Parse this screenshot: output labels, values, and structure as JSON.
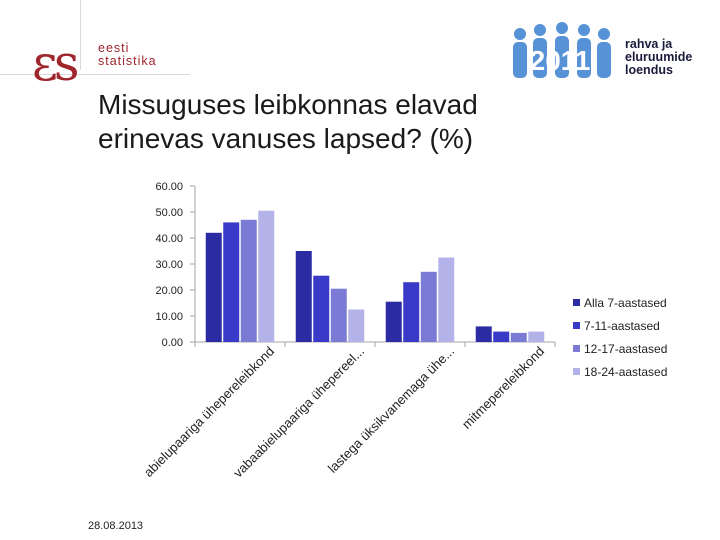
{
  "branding": {
    "left_logo_mark": "εs",
    "left_logo_line1": "eesti",
    "left_logo_line2": "statistika",
    "right_logo_figure": "2011",
    "right_logo_line1": "rahva ja",
    "right_logo_line2": "eluruumide",
    "right_logo_line3": "loendus"
  },
  "title_line1": "Missuguses leibkonnas elavad",
  "title_line2": "erinevas vanuses lapsed? (%)",
  "footer_date": "28.08.2013",
  "colors": {
    "series": [
      "#2b2ba3",
      "#3a3ac8",
      "#7b7bd6",
      "#b3b3ea"
    ],
    "axis": "#a6a6a6",
    "logo_left": "#a0262e",
    "logo_right": "#3a7fd0"
  },
  "chart_data": {
    "type": "bar",
    "title": "",
    "xlabel": "",
    "ylabel": "",
    "ylim": [
      0,
      60
    ],
    "yticks": [
      "0.00",
      "10.00",
      "20.00",
      "30.00",
      "40.00",
      "50.00",
      "60.00"
    ],
    "categories": [
      "abielupaariga ühepereleibkond",
      "vabaabielupaariga ühepereel...",
      "lastega üksikvanemaga ühe...",
      "mitmepereleibkond"
    ],
    "series": [
      {
        "name": "Alla 7-aastased",
        "values": [
          42,
          35,
          15.5,
          6
        ]
      },
      {
        "name": "7-11-aastased",
        "values": [
          46,
          25.5,
          23,
          4
        ]
      },
      {
        "name": "12-17-aastased",
        "values": [
          47,
          20.5,
          27,
          3.5
        ]
      },
      {
        "name": "18-24-aastased",
        "values": [
          50.5,
          12.5,
          32.5,
          4
        ]
      }
    ],
    "grid": false,
    "legend_position": "right"
  }
}
